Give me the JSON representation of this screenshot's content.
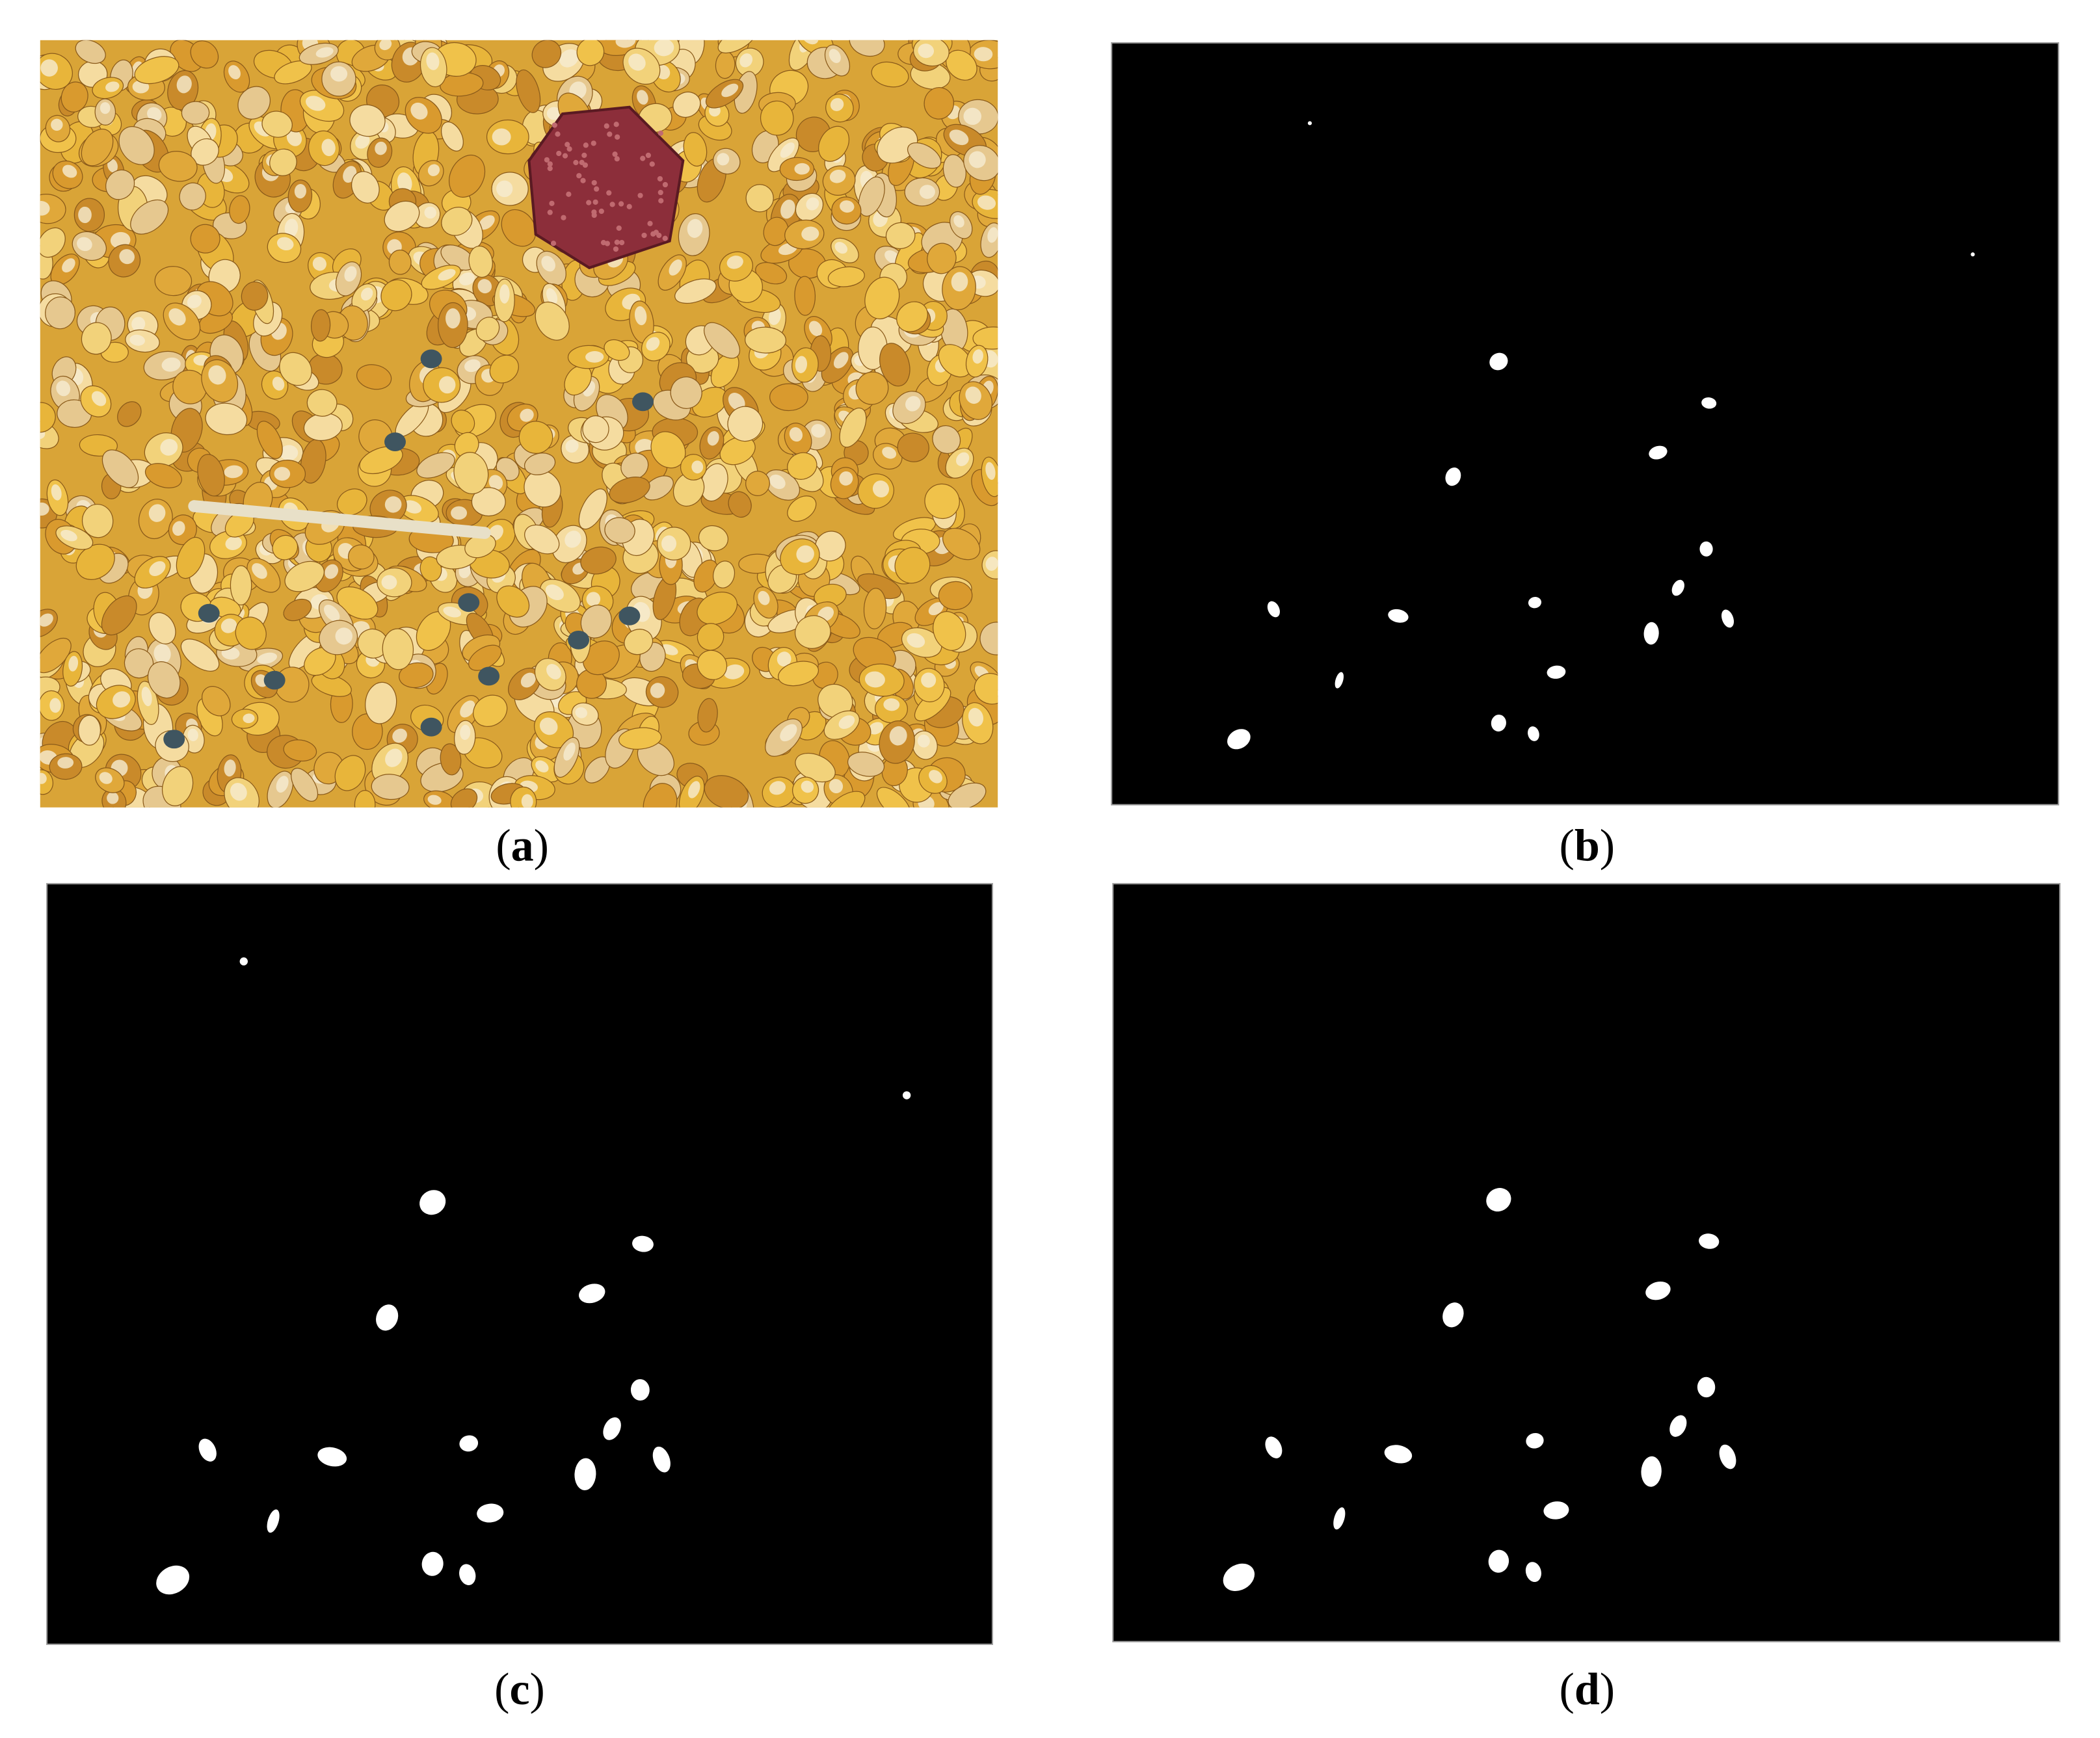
{
  "figure": {
    "panels": [
      {
        "open": "(",
        "letter": "a",
        "close": ")"
      },
      {
        "open": "(",
        "letter": "b",
        "close": ")"
      },
      {
        "open": "(",
        "letter": "c",
        "close": ")"
      },
      {
        "open": "(",
        "letter": "d",
        "close": ")"
      }
    ]
  }
}
